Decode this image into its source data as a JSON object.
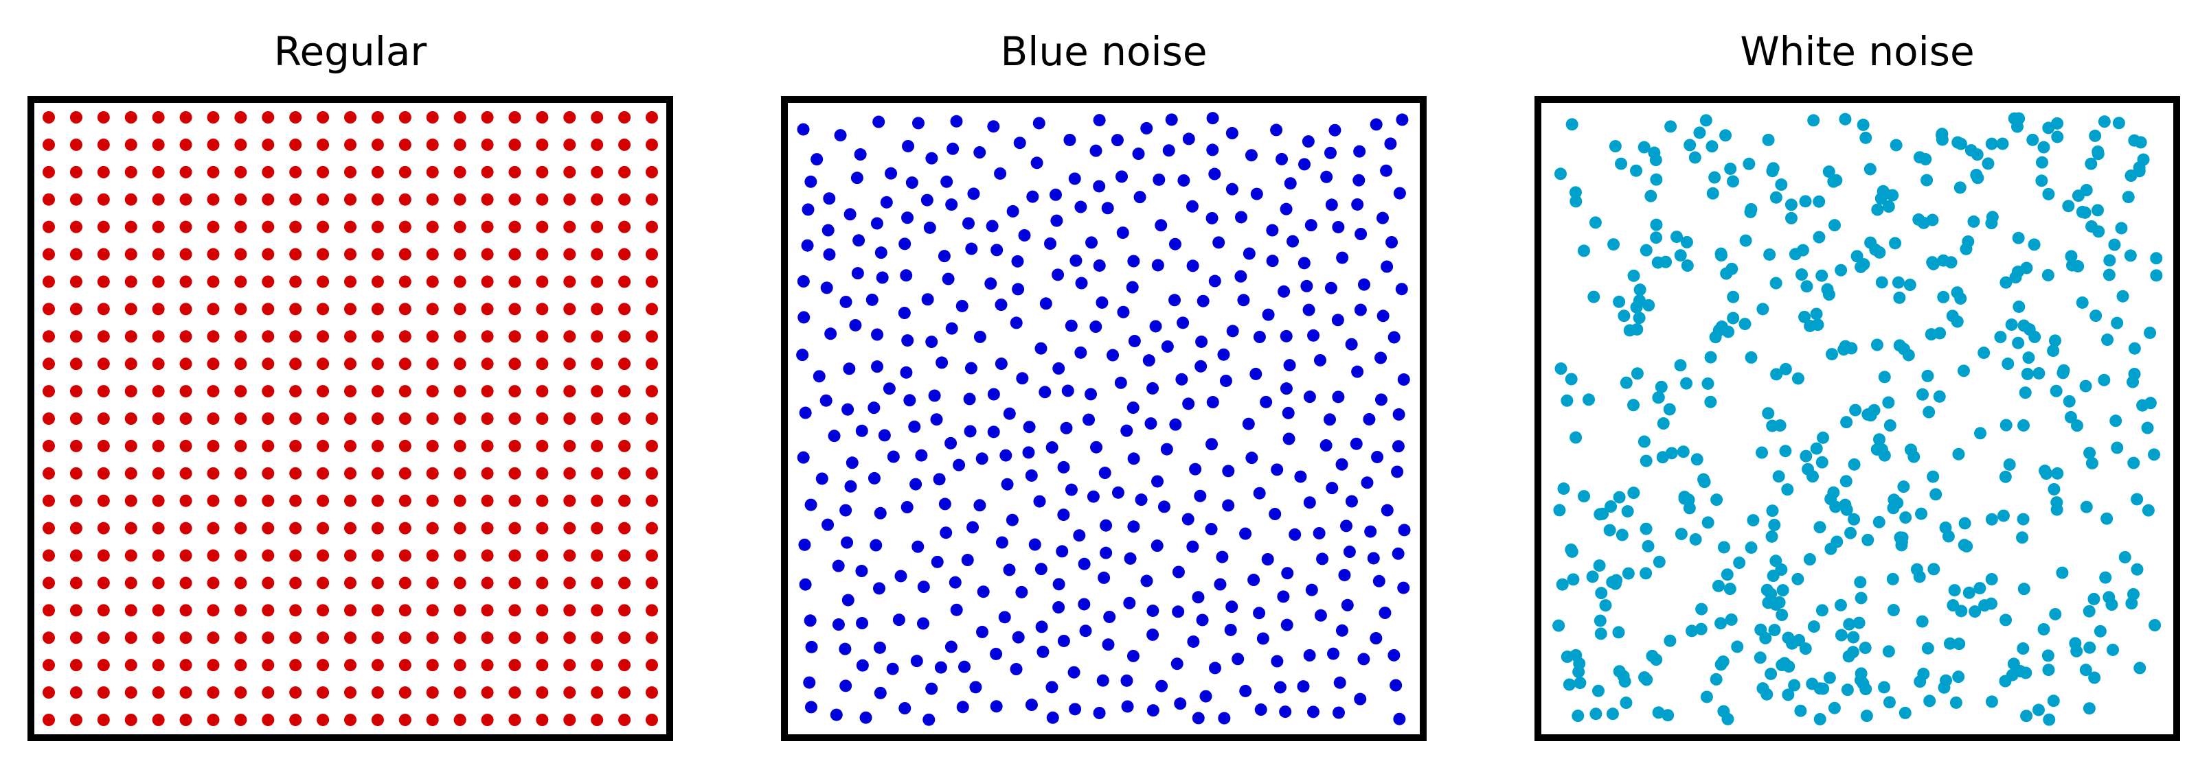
{
  "chart_data": [
    {
      "type": "scatter",
      "title": "Regular",
      "pattern": "regular-grid",
      "grid_size": [
        23,
        23
      ],
      "xlim": [
        0,
        1
      ],
      "ylim": [
        0,
        1
      ],
      "axes_visible": false,
      "grid": false,
      "color": "#d40000",
      "seed": 1
    },
    {
      "type": "scatter",
      "title": "Blue noise",
      "pattern": "poisson-disc",
      "point_count": 560,
      "xlim": [
        0,
        1
      ],
      "ylim": [
        0,
        1
      ],
      "axes_visible": false,
      "grid": false,
      "color": "#0000dd",
      "seed": 7
    },
    {
      "type": "scatter",
      "title": "White noise",
      "pattern": "uniform-random",
      "point_count": 560,
      "xlim": [
        0,
        1
      ],
      "ylim": [
        0,
        1
      ],
      "axes_visible": false,
      "grid": false,
      "color": "#00a0cc",
      "seed": 13
    }
  ]
}
